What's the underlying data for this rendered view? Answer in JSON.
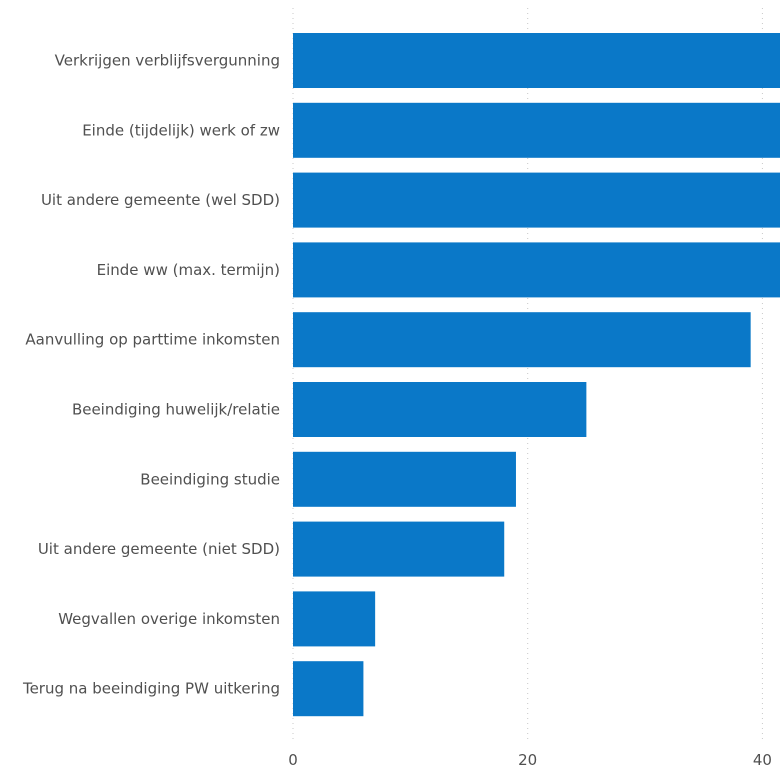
{
  "chart_data": {
    "type": "bar",
    "orientation": "horizontal",
    "categories": [
      "Verkrijgen verblijfsvergunning",
      "Einde (tijdelijk) werk of zw",
      "Uit andere gemeente (wel SDD)",
      "Einde ww (max. termijn)",
      "Aanvulling op parttime inkomsten",
      "Beeindiging huwelijk/relatie",
      "Beeindiging studie",
      "Uit andere gemeente (niet SDD)",
      "Wegvallen overige inkomsten",
      "Terug na beeindiging PW uitkering"
    ],
    "values": [
      41.5,
      41.5,
      41.5,
      41.5,
      39,
      25,
      19,
      18,
      7,
      6
    ],
    "xlim": [
      0,
      41.5
    ],
    "xticks": [
      0,
      20,
      40
    ],
    "xtick_labels": [
      "0",
      "20",
      "40"
    ],
    "bar_color": "#0a78c8",
    "grid": "vertical-dotted",
    "title": "",
    "xlabel": "",
    "ylabel": ""
  }
}
